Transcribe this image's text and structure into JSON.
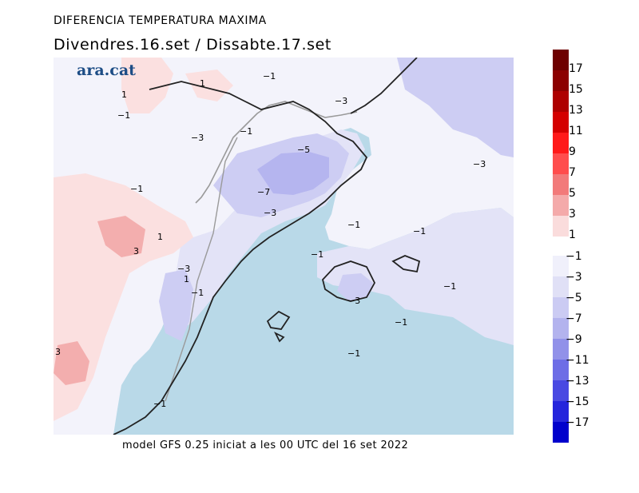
{
  "title_line1": "DIFERENCIA TEMPERATURA MAXIMA",
  "title_line2": "Divendres.16.set / Dissabte.17.set",
  "logo_text": "ara.cat",
  "footer_text": "model GFS 0.25 iniciat a les 00 UTC del 16 set 2022",
  "colorbar": {
    "positive_labels": [
      "17",
      "15",
      "13",
      "11",
      "9",
      "7",
      "5",
      "3",
      "1"
    ],
    "negative_labels": [
      "−1",
      "−3",
      "−5",
      "−7",
      "−9",
      "−11",
      "−13",
      "−15",
      "−17"
    ],
    "positive_colors": [
      "#6e0000",
      "#8c0000",
      "#ae0000",
      "#d40000",
      "#ff1a1a",
      "#ff4d4d",
      "#f27a7a",
      "#f4aaaa",
      "#fadcdc"
    ],
    "negative_colors": [
      "#f0f0fb",
      "#e0e0f6",
      "#cbcbf3",
      "#b3b3ee",
      "#9191e9",
      "#6d6de6",
      "#4949e2",
      "#2525dc",
      "#0000cc"
    ]
  },
  "map_colors": {
    "sea": "#b9d9e8",
    "land_neutral": "#f3f3fb",
    "minus1": "#e3e3f7",
    "minus3": "#cdcdf3",
    "minus5": "#b5b5ef",
    "plus1": "#fbe0e0",
    "plus3": "#f3aeae",
    "coast": "#222222",
    "border": "#9a9a9a"
  },
  "contour_labels": [
    {
      "text": "1",
      "ref": "c1"
    },
    {
      "text": "−1",
      "ref": "c2"
    },
    {
      "text": "1",
      "ref": "c3"
    },
    {
      "text": "−1",
      "ref": "c4"
    },
    {
      "text": "−3",
      "ref": "c5"
    },
    {
      "text": "−1",
      "ref": "c6"
    },
    {
      "text": "−3",
      "ref": "c7"
    },
    {
      "text": "−5",
      "ref": "c8"
    },
    {
      "text": "−3",
      "ref": "c9"
    },
    {
      "text": "−1",
      "ref": "c10"
    },
    {
      "text": "−7",
      "ref": "c11"
    },
    {
      "text": "−3",
      "ref": "c12"
    },
    {
      "text": "1",
      "ref": "c13"
    },
    {
      "text": "−1",
      "ref": "c14"
    },
    {
      "text": "−1",
      "ref": "c15"
    },
    {
      "text": "3",
      "ref": "c16"
    },
    {
      "text": "−1",
      "ref": "c17"
    },
    {
      "text": "−3",
      "ref": "c18"
    },
    {
      "text": "1",
      "ref": "c19"
    },
    {
      "text": "−1",
      "ref": "c20"
    },
    {
      "text": "−3",
      "ref": "c21"
    },
    {
      "text": "−1",
      "ref": "c22"
    },
    {
      "text": "−1",
      "ref": "c23"
    },
    {
      "text": "−1",
      "ref": "c24"
    },
    {
      "text": "3",
      "ref": "c25"
    },
    {
      "text": "−1",
      "ref": "c26"
    }
  ]
}
